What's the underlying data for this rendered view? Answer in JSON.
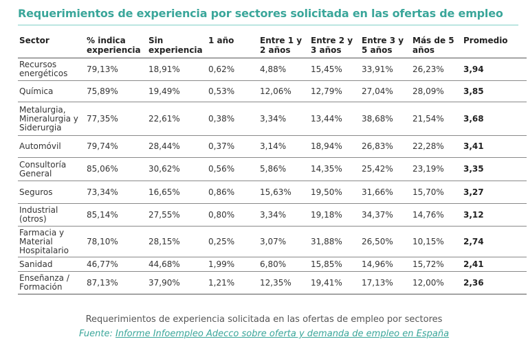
{
  "title": "Requerimientos de experiencia por sectores solicitada en las ofertas de empleo",
  "table": {
    "headers": [
      "Sector",
      "% indica experiencia",
      "Sin experiencia",
      "1 año",
      "Entre 1 y 2 años",
      "Entre 2 y 3 años",
      "Entre 3 y 5 años",
      "Más de 5 años",
      "Promedio"
    ],
    "rows": [
      [
        "Recursos energéticos",
        "79,13%",
        "18,91%",
        "0,62%",
        "4,88%",
        "15,45%",
        "33,91%",
        "26,23%",
        "3,94"
      ],
      [
        "Química",
        "75,89%",
        "19,49%",
        "0,53%",
        "12,06%",
        "12,79%",
        "27,04%",
        "28,09%",
        "3,85"
      ],
      [
        "Metalurgia, Mineralurgia y Siderurgia",
        "77,35%",
        "22,61%",
        "0,38%",
        "3,34%",
        "13,44%",
        "38,68%",
        "21,54%",
        "3,68"
      ],
      [
        "Automóvil",
        "79,74%",
        "28,44%",
        "0,37%",
        "3,14%",
        "18,94%",
        "26,83%",
        "22,28%",
        "3,41"
      ],
      [
        "Consultoría General",
        "85,06%",
        "30,62%",
        "0,56%",
        "5,86%",
        "14,35%",
        "25,42%",
        "23,19%",
        "3,35"
      ],
      [
        "Seguros",
        "73,34%",
        "16,65%",
        "0,86%",
        "15,63%",
        "19,50%",
        "31,66%",
        "15,70%",
        "3,27"
      ],
      [
        "Industrial (otros)",
        "85,14%",
        "27,55%",
        "0,80%",
        "3,34%",
        "19,18%",
        "34,37%",
        "14,76%",
        "3,12"
      ],
      [
        "Farmacia y Material Hospitalario",
        "78,10%",
        "28,15%",
        "0,25%",
        "3,07%",
        "31,88%",
        "26,50%",
        "10,15%",
        "2,74"
      ],
      [
        "Sanidad",
        "46,77%",
        "44,68%",
        "1,99%",
        "6,80%",
        "15,85%",
        "14,96%",
        "15,72%",
        "2,41"
      ],
      [
        "Enseñanza / Formación",
        "87,13%",
        "37,90%",
        "1,21%",
        "12,35%",
        "19,41%",
        "17,13%",
        "12,00%",
        "2,36"
      ]
    ]
  },
  "caption": "Requerimientos de experiencia solicitada en las ofertas de empleo por sectores",
  "source": {
    "label": "Fuente:",
    "link_text": "Informe Infoempleo Adecco sobre oferta y demanda de empleo en España"
  },
  "colors": {
    "accent": "#3aa69a",
    "text": "#333333"
  }
}
